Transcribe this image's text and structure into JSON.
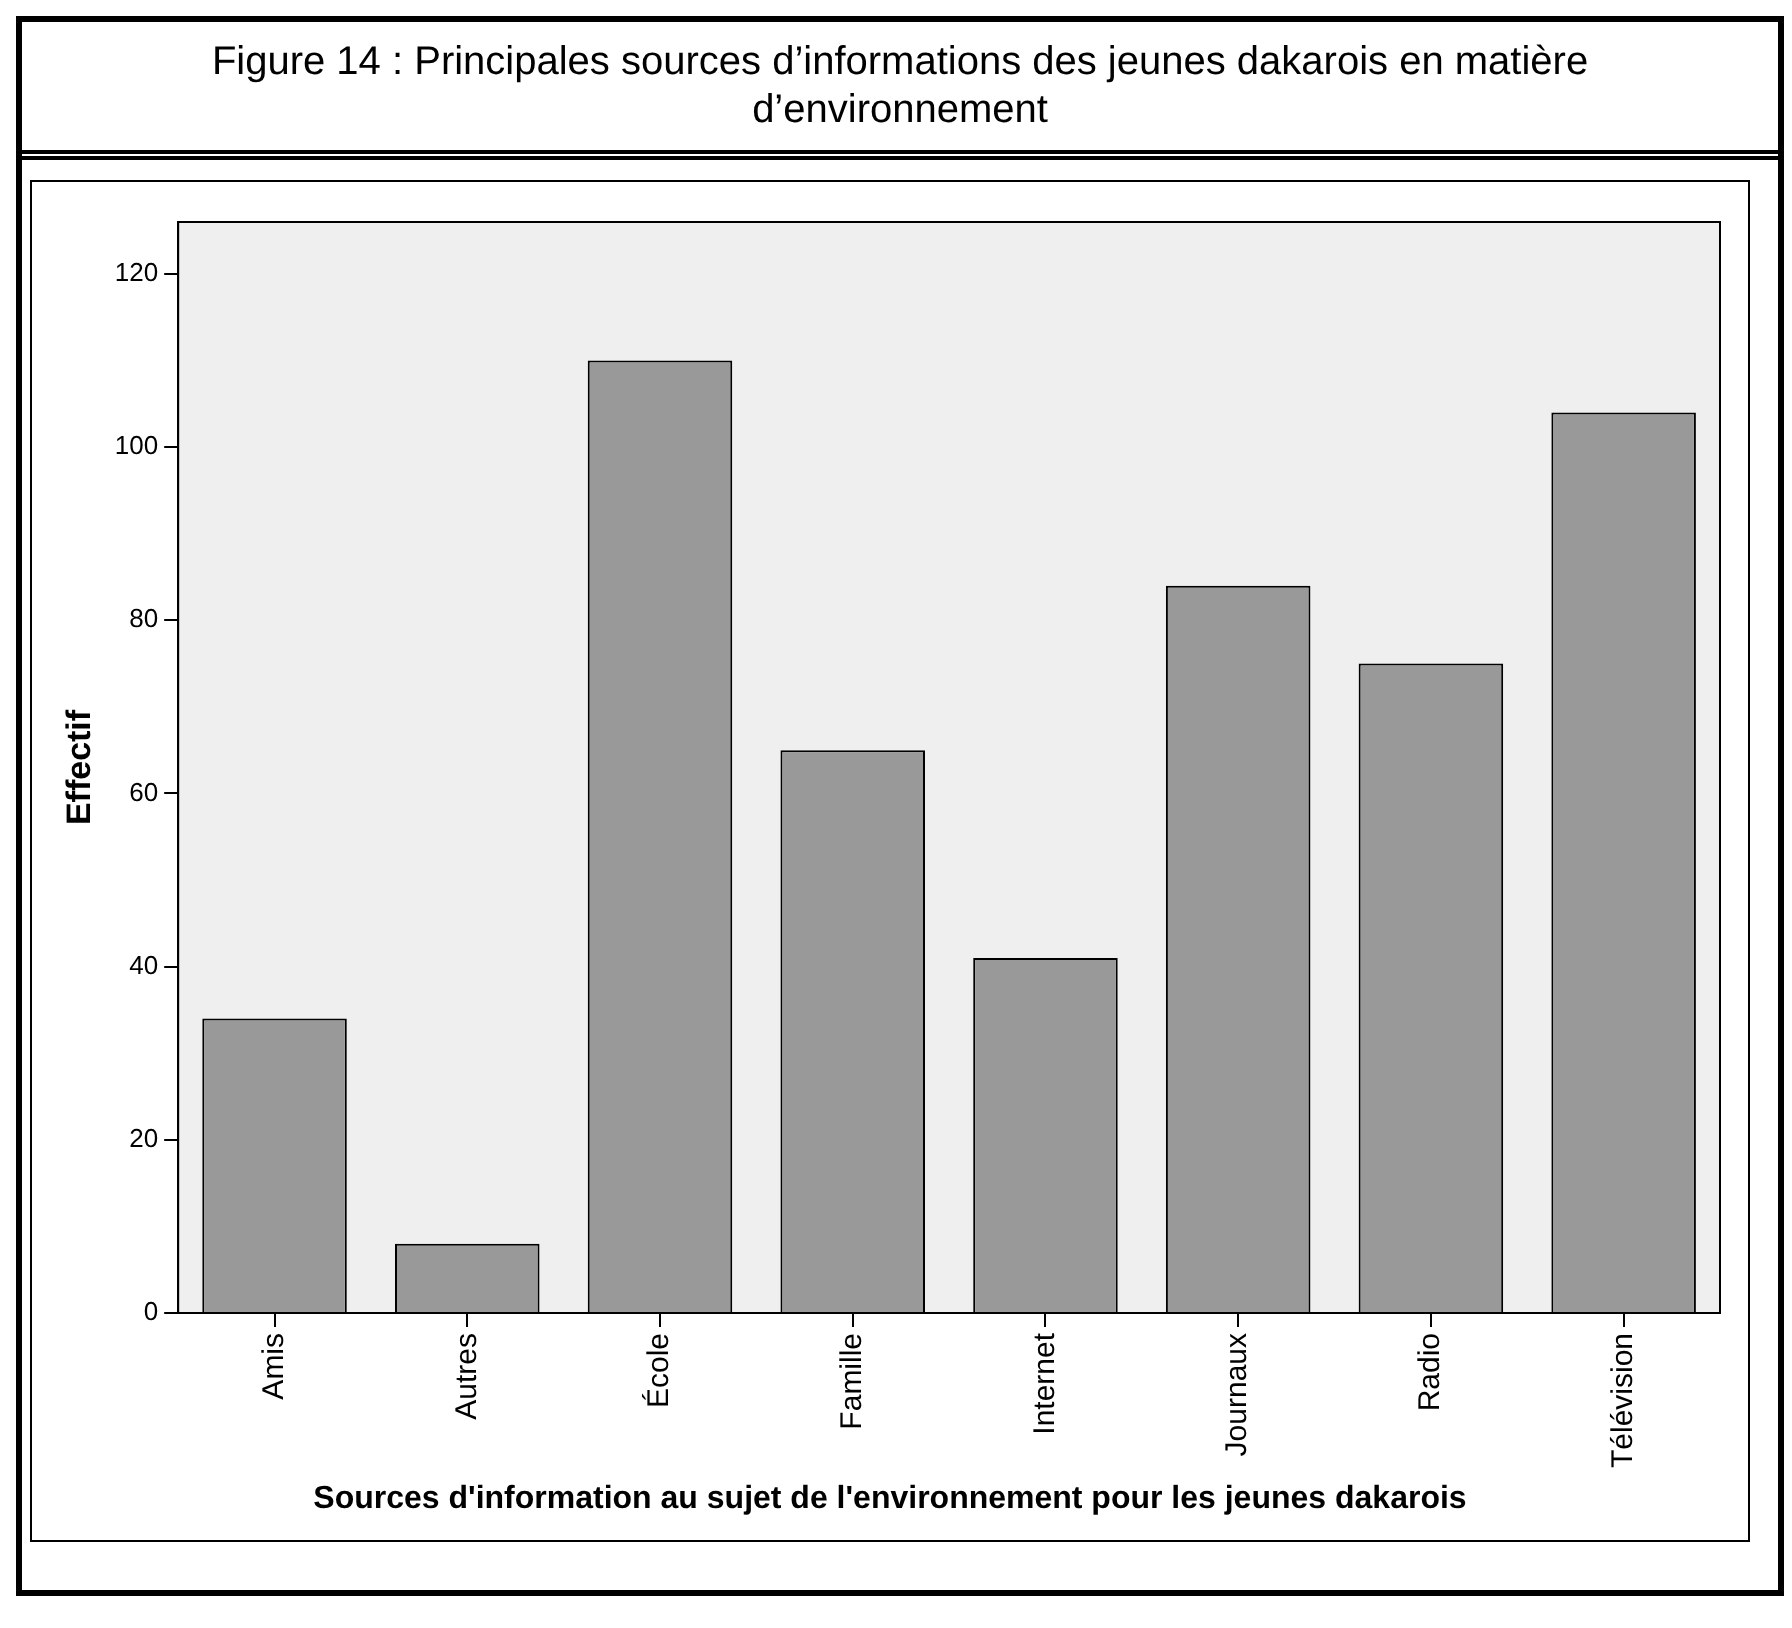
{
  "chart_data": {
    "type": "bar",
    "title": "Figure 14 : Principales sources d’informations des jeunes dakarois en matière d’environnement",
    "xlabel": "Sources d'information au sujet de l'environnement pour les jeunes dakarois",
    "ylabel": "Effectif",
    "categories": [
      "Amis",
      "Autres",
      "École",
      "Famille",
      "Internet",
      "Journaux",
      "Radio",
      "Télévision"
    ],
    "values": [
      34,
      8,
      110,
      65,
      41,
      84,
      75,
      104
    ],
    "color": "#999999",
    "ylim": [
      0,
      126
    ],
    "yticks": [
      0,
      20,
      40,
      60,
      80,
      100,
      120
    ],
    "grid": false,
    "legend": false
  }
}
